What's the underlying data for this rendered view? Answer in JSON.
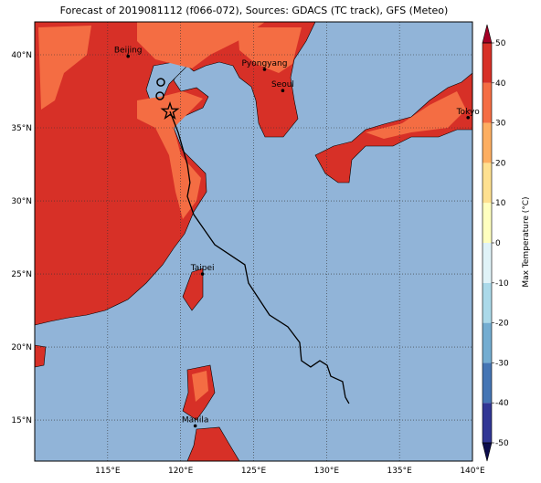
{
  "chart_data": {
    "type": "map",
    "title": "Forecast of 2019081112 (f066-072), Sources: GDACS (TC track), GFS (Meteo)",
    "xlim": [
      110,
      140
    ],
    "ylim": [
      12.19,
      42.25
    ],
    "xticks": [
      {
        "value": 115,
        "label": "115°E"
      },
      {
        "value": 120,
        "label": "120°E"
      },
      {
        "value": 125,
        "label": "125°E"
      },
      {
        "value": 130,
        "label": "130°E"
      },
      {
        "value": 135,
        "label": "135°E"
      },
      {
        "value": 140,
        "label": "140°E"
      }
    ],
    "yticks": [
      {
        "value": 15,
        "label": "15°N"
      },
      {
        "value": 20,
        "label": "20°N"
      },
      {
        "value": 25,
        "label": "25°N"
      },
      {
        "value": 30,
        "label": "30°N"
      },
      {
        "value": 35,
        "label": "35°N"
      },
      {
        "value": 40,
        "label": "40°N"
      }
    ],
    "grid": true,
    "cities": [
      {
        "name": "Beijing",
        "lon": 116.4,
        "lat": 39.9
      },
      {
        "name": "Pyongyang",
        "lon": 125.75,
        "lat": 39.0
      },
      {
        "name": "Seoul",
        "lon": 127.0,
        "lat": 37.55
      },
      {
        "name": "Tokyo",
        "lon": 139.7,
        "lat": 35.7
      },
      {
        "name": "Taipei",
        "lon": 121.5,
        "lat": 25.0
      },
      {
        "name": "Manila",
        "lon": 121.0,
        "lat": 14.6
      }
    ],
    "track": {
      "color": "#000000",
      "lon": [
        119.27,
        119.83,
        120.46,
        120.64,
        120.46,
        120.9,
        122.34,
        124.4,
        124.65,
        126.09,
        127.35,
        128.16,
        128.28,
        128.91,
        129.54,
        130.04,
        130.29,
        131.1,
        131.29,
        131.54
      ],
      "lat": [
        36.12,
        34.69,
        32.5,
        31.25,
        30.31,
        29.06,
        27.0,
        25.63,
        24.38,
        22.19,
        21.38,
        20.31,
        19.06,
        18.63,
        19.06,
        18.75,
        18.0,
        17.63,
        16.56,
        16.13
      ]
    },
    "star": {
      "lon": 119.27,
      "lat": 36.12
    },
    "circles": {
      "lon": [
        118.64,
        118.58
      ],
      "lat": [
        38.12,
        37.19
      ]
    },
    "colorbar": {
      "label": "Max Temperature (°C)",
      "ticks": [
        -50,
        -40,
        -30,
        -20,
        -10,
        0,
        10,
        20,
        30,
        40,
        50
      ],
      "colors": [
        "#313695",
        "#4575b4",
        "#74add1",
        "#abd9e9",
        "#e0f3f8",
        "#ffffbf",
        "#fee090",
        "#fdae61",
        "#f46d43",
        "#d73027"
      ],
      "extend_colors": [
        "#0d0d4d",
        "#a50026"
      ]
    }
  }
}
